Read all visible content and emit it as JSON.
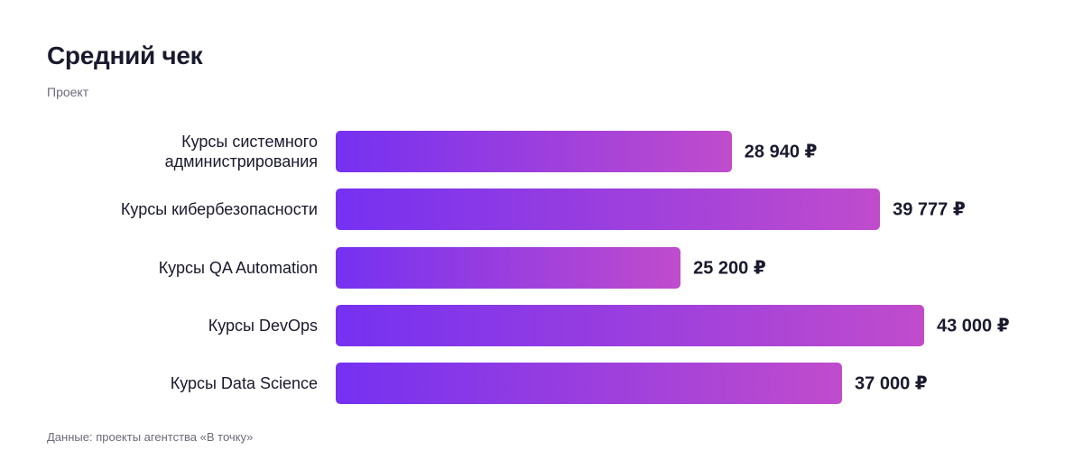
{
  "chart_data": {
    "type": "bar",
    "orientation": "horizontal",
    "title": "Средний чек",
    "subtitle": "Проект",
    "categories": [
      "Курсы системного администрирования",
      "Курсы кибербезопасности",
      "Курсы QA Automation",
      "Курсы DevOps",
      "Курсы Data Science"
    ],
    "values": [
      28940,
      39777,
      25200,
      43000,
      37000
    ],
    "value_labels": [
      "28 940 ₽",
      "39 777 ₽",
      "25 200 ₽",
      "43 000 ₽",
      "37 000 ₽"
    ],
    "gradient": [
      "#7531f1",
      "#c04ccc"
    ],
    "source": "Данные: проекты агентства «В точку»"
  }
}
